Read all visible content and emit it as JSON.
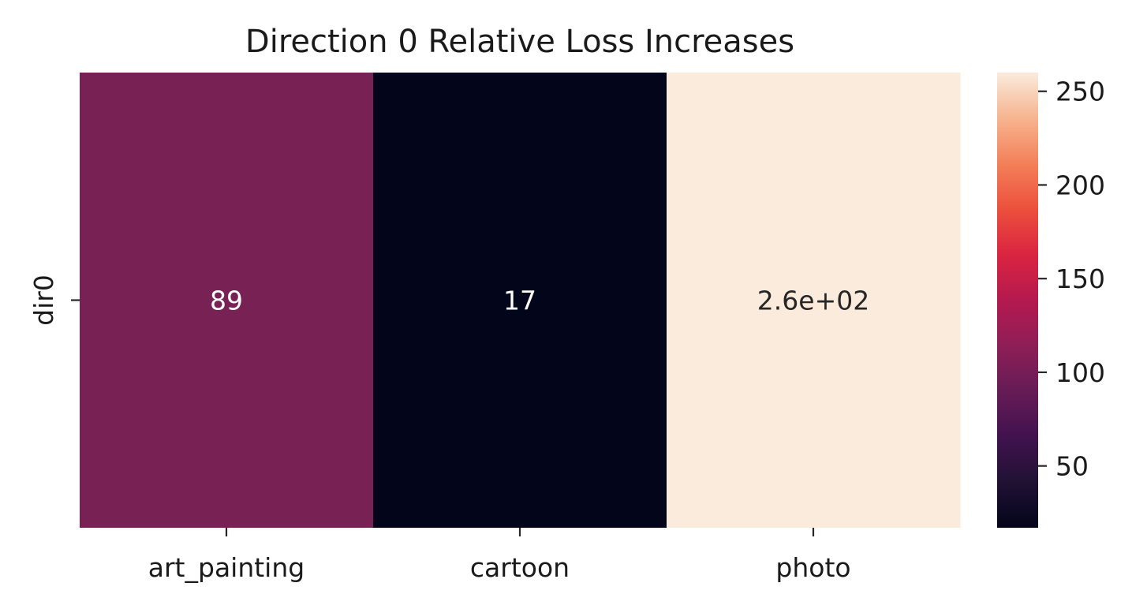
{
  "chart_data": {
    "type": "heatmap",
    "title": "Direction 0 Relative Loss Increases",
    "x_categories": [
      "art_painting",
      "cartoon",
      "photo"
    ],
    "y_categories": [
      "dir0"
    ],
    "values": [
      [
        89,
        17,
        260
      ]
    ],
    "annotations": [
      [
        "89",
        "17",
        "2.6e+02"
      ]
    ],
    "xlabel": "",
    "ylabel": "",
    "colorbar": {
      "range": [
        17,
        260
      ],
      "ticks": [
        50,
        100,
        150,
        200,
        250
      ],
      "colormap": "rocket"
    },
    "colors": {
      "art_painting": "#772155",
      "cartoon": "#03051a",
      "photo": "#faebdd"
    },
    "annotation_colors": {
      "light": "#ffffff",
      "dark": "#262626"
    },
    "grid": false
  }
}
